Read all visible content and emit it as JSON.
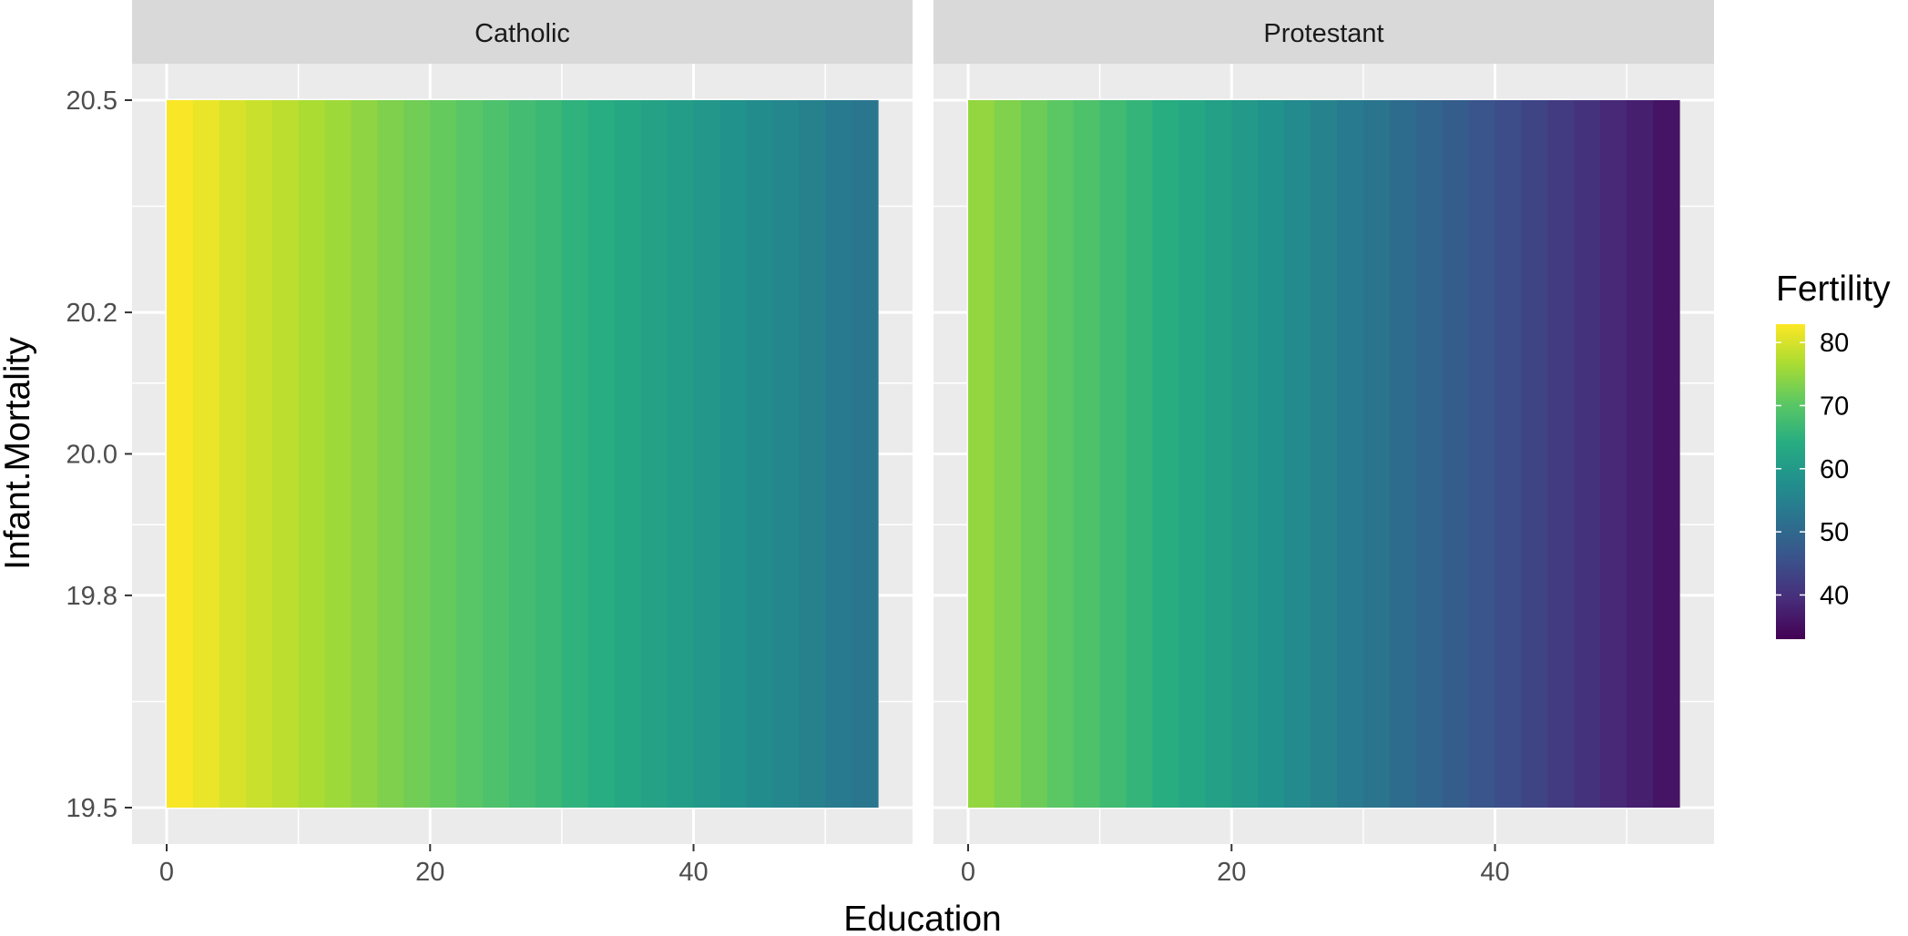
{
  "chart_data": {
    "type": "heatmap",
    "x": {
      "label": "Education",
      "range": [
        0,
        54
      ],
      "ticks": [
        0,
        20,
        40
      ],
      "tile_width": 2
    },
    "y": {
      "label": "Infant.Mortality",
      "range": [
        19.5,
        20.5
      ],
      "ticks": [
        19.5,
        19.8,
        20.0,
        20.2,
        20.5
      ]
    },
    "fill": {
      "label": "Fertility",
      "scale": "viridis",
      "range": [
        33.0,
        82.9
      ],
      "ticks": [
        40,
        50,
        60,
        70,
        80
      ]
    },
    "grid": true,
    "legend_position": "right",
    "facets": [
      {
        "name": "Catholic",
        "education": [
          1,
          3,
          5,
          7,
          9,
          11,
          13,
          15,
          17,
          19,
          21,
          23,
          25,
          27,
          29,
          31,
          33,
          35,
          37,
          39,
          41,
          43,
          45,
          47,
          49,
          51,
          53
        ],
        "fertility": [
          82.6,
          81.5,
          80.2,
          79.0,
          78.0,
          76.7,
          75.7,
          74.5,
          73.2,
          72.1,
          71.1,
          69.9,
          68.7,
          67.6,
          66.5,
          65.3,
          64.1,
          63.0,
          61.9,
          60.7,
          59.6,
          58.4,
          57.2,
          56.1,
          55.0,
          53.8,
          52.7
        ]
      },
      {
        "name": "Protestant",
        "education": [
          1,
          3,
          5,
          7,
          9,
          11,
          13,
          15,
          17,
          19,
          21,
          23,
          25,
          27,
          29,
          31,
          33,
          35,
          37,
          39,
          41,
          43,
          45,
          47,
          49,
          51,
          53
        ],
        "fertility": [
          74.9,
          73.3,
          71.8,
          70.3,
          68.8,
          67.3,
          65.8,
          64.3,
          62.8,
          61.3,
          59.8,
          58.3,
          56.8,
          55.3,
          53.8,
          52.3,
          50.8,
          49.3,
          47.8,
          46.3,
          44.8,
          43.3,
          41.8,
          40.3,
          38.8,
          37.3,
          35.8
        ]
      }
    ]
  }
}
